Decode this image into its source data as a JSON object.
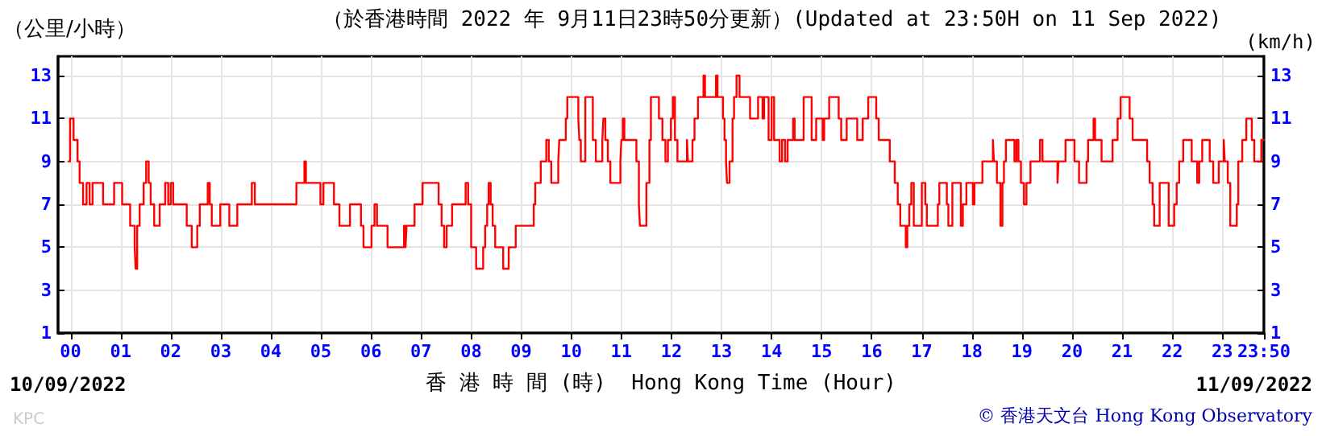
{
  "chart_data": {
    "type": "step",
    "title": "（於香港時間 2022 年 9月11日23時50分更新）(Updated at 23:50H on 11 Sep 2022)",
    "ylabel": "（公里/小時）",
    "y2label": "(km/h)",
    "xlabel": "香 港 時 間 (時)  Hong Kong Time (Hour)",
    "annotations": [
      "10/09/2022",
      "11/09/2022",
      "© 香港天文台 Hong Kong Observatory",
      "KPC"
    ],
    "x": [
      -0.04,
      -0.01,
      0.06,
      0.14,
      0.18,
      0.25,
      0.32,
      0.38,
      0.44,
      0.65,
      0.87,
      1.03,
      1.19,
      1.28,
      1.3,
      1.33,
      1.38,
      1.46,
      1.51,
      1.56,
      1.6,
      1.67,
      1.78,
      1.89,
      1.95,
      2.0,
      2.05,
      2.32,
      2.42,
      2.53,
      2.58,
      2.74,
      2.78,
      2.82,
      2.99,
      3.17,
      3.33,
      3.62,
      3.68,
      4.51,
      4.67,
      4.7,
      4.99,
      5.05,
      5.26,
      5.37,
      5.58,
      5.8,
      5.85,
      6.01,
      6.07,
      6.12,
      6.33,
      6.66,
      6.69,
      6.71,
      6.87,
      7.03,
      7.35,
      7.41,
      7.46,
      7.51,
      7.62,
      7.89,
      7.94,
      8.0,
      8.1,
      8.24,
      8.28,
      8.32,
      8.35,
      8.39,
      8.43,
      8.48,
      8.64,
      8.75,
      8.89,
      9.25,
      9.28,
      9.39,
      9.5,
      9.55,
      9.6,
      9.74,
      9.76,
      9.89,
      9.92,
      10.14,
      10.16,
      10.19,
      10.22,
      10.28,
      10.43,
      10.49,
      10.62,
      10.64,
      10.68,
      10.73,
      10.78,
      10.98,
      11.0,
      11.03,
      11.06,
      11.3,
      11.35,
      11.37,
      11.5,
      11.56,
      11.59,
      11.75,
      11.82,
      11.88,
      11.93,
      11.99,
      12.03,
      12.07,
      12.12,
      12.31,
      12.33,
      12.42,
      12.46,
      12.53,
      12.64,
      12.67,
      12.89,
      12.92,
      13.03,
      13.06,
      13.09,
      13.11,
      13.16,
      13.22,
      13.25,
      13.3,
      13.36,
      13.57,
      13.73,
      13.82,
      13.85,
      13.94,
      14.0,
      14.05,
      14.16,
      14.21,
      14.27,
      14.32,
      14.43,
      14.46,
      14.64,
      14.8,
      14.89,
      15.02,
      15.05,
      15.15,
      15.34,
      15.39,
      15.5,
      15.71,
      15.82,
      15.93,
      16.09,
      16.14,
      16.36,
      16.46,
      16.52,
      16.57,
      16.68,
      16.71,
      16.75,
      16.79,
      16.84,
      17.0,
      17.07,
      17.1,
      17.32,
      17.35,
      17.5,
      17.53,
      17.61,
      17.78,
      17.82,
      17.89,
      18.02,
      18.05,
      18.21,
      18.42,
      18.44,
      18.5,
      18.57,
      18.61,
      18.64,
      18.68,
      18.85,
      18.89,
      18.93,
      18.98,
      19.04,
      19.09,
      19.17,
      19.36,
      19.41,
      19.71,
      19.73,
      19.87,
      20.05,
      20.14,
      20.29,
      20.32,
      20.43,
      20.46,
      20.59,
      20.81,
      20.91,
      20.97,
      21.15,
      21.21,
      21.5,
      21.55,
      21.61,
      21.64,
      21.75,
      21.93,
      22.04,
      22.09,
      22.14,
      22.22,
      22.39,
      22.5,
      22.54,
      22.6,
      22.75,
      22.82,
      22.93,
      23.03,
      23.05,
      23.11,
      23.16,
      23.29,
      23.32,
      23.4,
      23.48,
      23.59,
      23.64,
      23.78,
      23.83
    ],
    "series": [
      {
        "color": "#ff0000",
        "values": [
          9,
          11,
          10,
          9,
          8,
          7,
          8,
          7,
          8,
          7,
          8,
          7,
          6,
          5,
          4,
          6,
          7,
          8,
          9,
          8,
          7,
          6,
          7,
          8,
          7,
          8,
          7,
          6,
          5,
          6,
          7,
          8,
          7,
          6,
          7,
          6,
          7,
          8,
          7,
          8,
          9,
          8,
          7,
          8,
          7,
          6,
          7,
          6,
          5,
          6,
          7,
          6,
          5,
          6,
          5,
          6,
          7,
          8,
          7,
          6,
          5,
          6,
          7,
          8,
          7,
          5,
          4,
          5,
          6,
          7,
          8,
          7,
          6,
          5,
          4,
          5,
          6,
          7,
          8,
          9,
          10,
          9,
          8,
          9,
          10,
          11,
          12,
          11,
          10,
          9,
          9,
          12,
          10,
          9,
          10,
          11,
          10,
          9,
          8,
          9,
          10,
          11,
          10,
          9,
          7,
          6,
          8,
          10,
          12,
          11,
          10,
          9,
          10,
          11,
          12,
          10,
          9,
          10,
          9,
          10,
          11,
          12,
          13,
          12,
          13,
          12,
          11,
          10,
          9,
          8,
          9,
          11,
          12,
          13,
          12,
          11,
          12,
          11,
          12,
          10,
          12,
          10,
          9,
          10,
          9,
          10,
          11,
          10,
          12,
          10,
          11,
          10,
          11,
          12,
          11,
          10,
          11,
          10,
          11,
          12,
          11,
          10,
          9,
          8,
          7,
          6,
          5,
          6,
          7,
          8,
          6,
          8,
          7,
          6,
          7,
          8,
          7,
          6,
          8,
          6,
          7,
          8,
          7,
          8,
          9,
          10,
          9,
          8,
          6,
          8,
          9,
          10,
          9,
          10,
          9,
          8,
          7,
          8,
          9,
          10,
          9,
          8,
          9,
          10,
          9,
          8,
          9,
          10,
          11,
          10,
          9,
          10,
          11,
          12,
          11,
          10,
          9,
          8,
          7,
          6,
          8,
          6,
          7,
          8,
          9,
          10,
          9,
          8,
          9,
          10,
          9,
          8,
          9,
          10,
          9,
          8,
          6,
          7,
          9,
          10,
          11,
          10,
          9,
          10,
          10
        ]
      }
    ],
    "xlim": [
      -0.25,
      23.833
    ],
    "xticks": [
      {
        "value": 0,
        "label": "00"
      },
      {
        "value": 1,
        "label": "01"
      },
      {
        "value": 2,
        "label": "02"
      },
      {
        "value": 3,
        "label": "03"
      },
      {
        "value": 4,
        "label": "04"
      },
      {
        "value": 5,
        "label": "05"
      },
      {
        "value": 6,
        "label": "06"
      },
      {
        "value": 7,
        "label": "07"
      },
      {
        "value": 8,
        "label": "08"
      },
      {
        "value": 9,
        "label": "09"
      },
      10,
      11,
      12,
      13,
      14,
      15,
      16,
      17,
      18,
      19,
      20,
      21,
      22,
      23,
      {
        "value": 23.833,
        "label": "23:50"
      }
    ],
    "ylim": [
      1,
      13.9
    ],
    "yticks": [
      1,
      3,
      5,
      7,
      9,
      11,
      13
    ],
    "y2lim": [
      1,
      13.9
    ],
    "y2ticks": [
      1,
      3,
      5,
      7,
      9,
      11,
      13
    ],
    "grid": true,
    "marker": "none",
    "line_style": "solid"
  }
}
